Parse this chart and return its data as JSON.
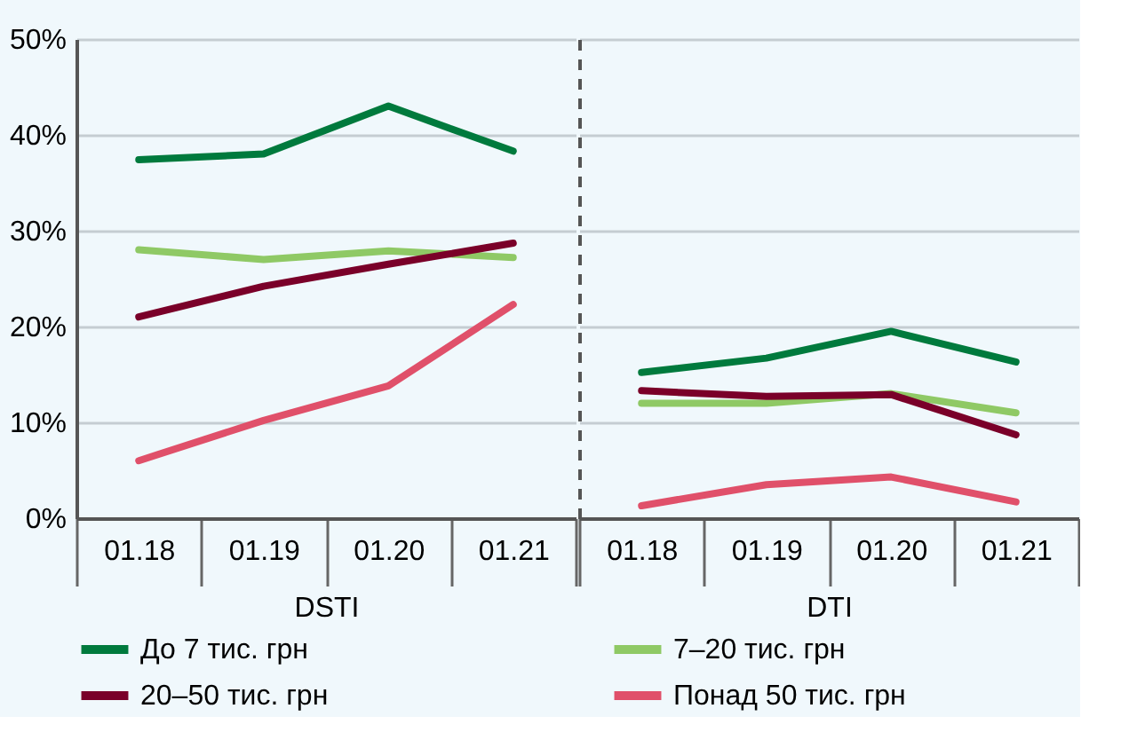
{
  "chart_data": [
    {
      "type": "line",
      "xlabel": "DSTI",
      "categories": [
        "01.18",
        "01.19",
        "01.20",
        "01.21"
      ],
      "ylim": [
        0,
        50
      ],
      "yticks": [
        {
          "value": 0,
          "label": "0%"
        },
        {
          "value": 10,
          "label": "10%"
        },
        {
          "value": 20,
          "label": "20%"
        },
        {
          "value": 30,
          "label": "30%"
        },
        {
          "value": 40,
          "label": "40%"
        },
        {
          "value": 50,
          "label": "50%"
        }
      ],
      "grid": "y",
      "legend": "bottom",
      "marker": "none",
      "line_style": "solid",
      "series": [
        {
          "name": "До 7  тис. грн",
          "color": "#007a3d",
          "values": [
            37.4,
            38.0,
            43.0,
            38.3
          ]
        },
        {
          "name": "7–20 тис. грн",
          "color": "#8fc965",
          "values": [
            28.0,
            27.0,
            27.9,
            27.2
          ]
        },
        {
          "name": "20–50 тис. грн",
          "color": "#7a0029",
          "values": [
            21.0,
            24.2,
            26.5,
            28.7
          ]
        },
        {
          "name": "Понад  50 тис. грн",
          "color": "#e0506a",
          "values": [
            6.0,
            10.2,
            13.8,
            22.3
          ]
        }
      ]
    },
    {
      "type": "line",
      "xlabel": "DTI",
      "categories": [
        "01.18",
        "01.19",
        "01.20",
        "01.21"
      ],
      "ylim": [
        0,
        50
      ],
      "yticks": [
        0,
        10,
        20,
        30,
        40,
        50
      ],
      "grid": "y",
      "legend": false,
      "tick_labels": "x",
      "marker": "none",
      "line_style": "solid",
      "series": [
        {
          "color": "#007a3d",
          "values": [
            15.2,
            16.7,
            19.5,
            16.3
          ]
        },
        {
          "color": "#8fc965",
          "values": [
            12.0,
            12.0,
            13.0,
            11.0
          ]
        },
        {
          "color": "#7a0029",
          "values": [
            13.3,
            12.7,
            12.9,
            8.7
          ]
        },
        {
          "color": "#e0506a",
          "values": [
            1.3,
            3.5,
            4.3,
            1.7
          ]
        }
      ]
    }
  ]
}
